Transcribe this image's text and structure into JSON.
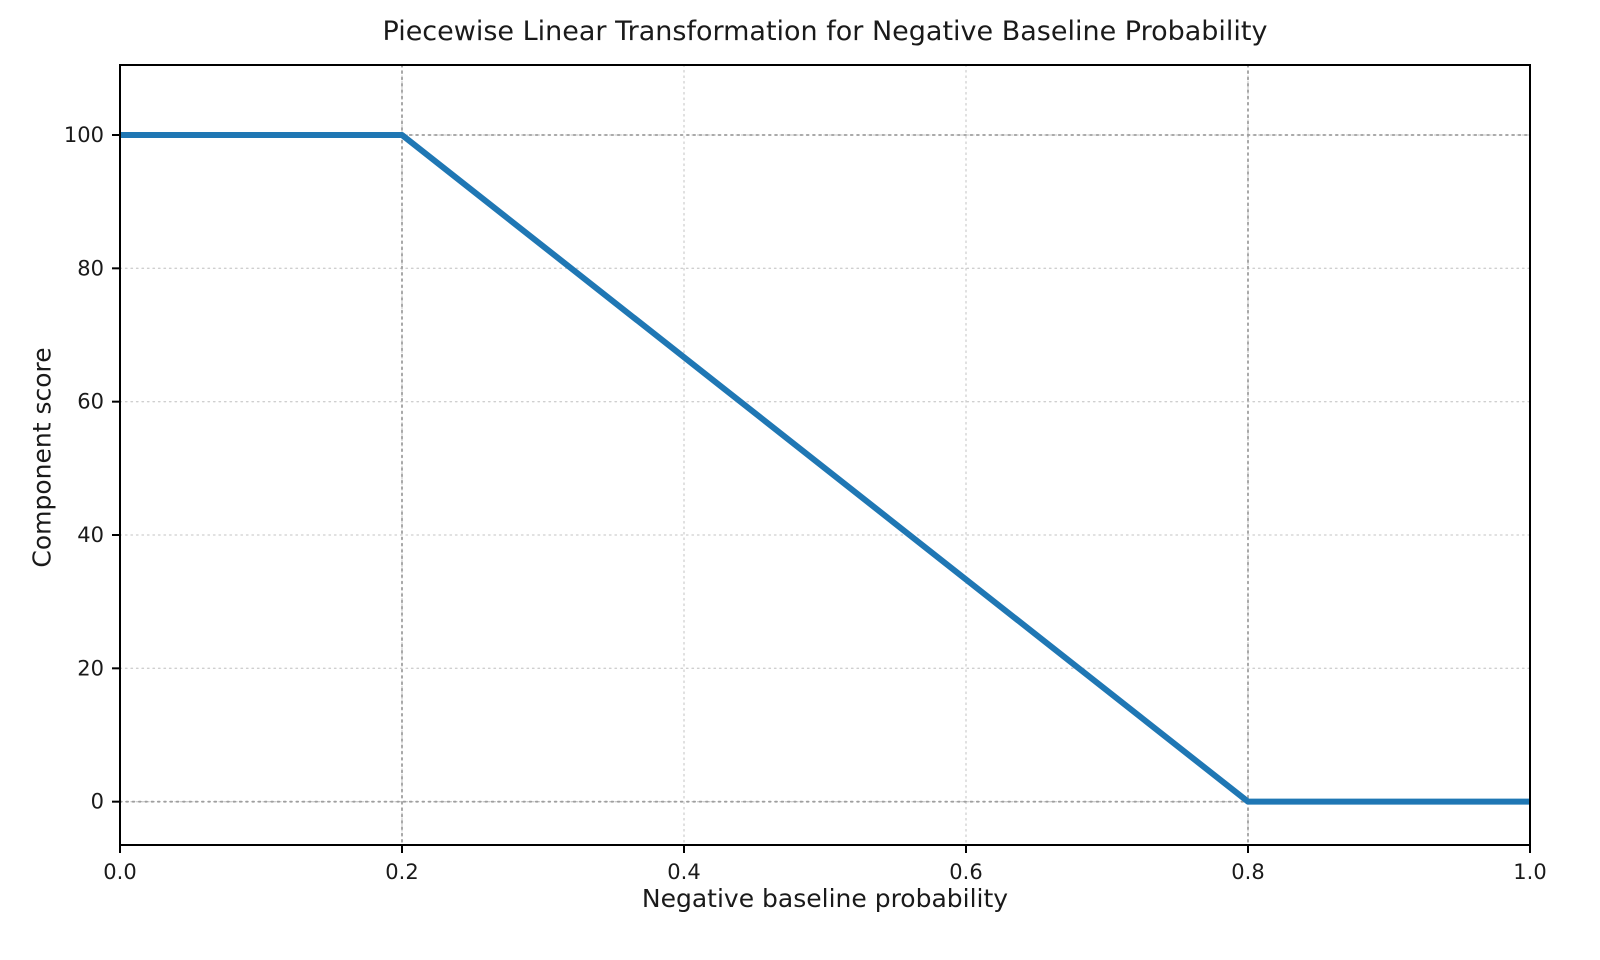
{
  "chart_data": {
    "type": "line",
    "title": "Piecewise Linear Transformation for Negative Baseline Probability",
    "xlabel": "Negative baseline probability",
    "ylabel": "Component score",
    "x": [
      0.0,
      0.2,
      0.8,
      1.0
    ],
    "y": [
      100,
      100,
      0,
      0
    ],
    "xlim": [
      0.0,
      1.0
    ],
    "ylim": [
      -6.5,
      110.5
    ],
    "xtick_labels": [
      "0.0",
      "0.2",
      "0.4",
      "0.6",
      "0.8",
      "1.0"
    ],
    "xtick_values": [
      0.0,
      0.2,
      0.4,
      0.6,
      0.8,
      1.0
    ],
    "ytick_labels": [
      "0",
      "20",
      "40",
      "60",
      "80",
      "100"
    ],
    "ytick_values": [
      0,
      20,
      40,
      60,
      80,
      100
    ],
    "grid": "on",
    "legend": "none",
    "reference_lines": {
      "x": [
        0.2,
        0.8
      ],
      "y": [
        0,
        100
      ]
    },
    "line_color": "#1f77b4",
    "line_width": 6,
    "grid_color": "#cfcfcf",
    "ref_line_color": "#9f9f9f",
    "spine_color": "#000000",
    "tick_text_color": "#1a1a1a",
    "background": "#ffffff"
  }
}
